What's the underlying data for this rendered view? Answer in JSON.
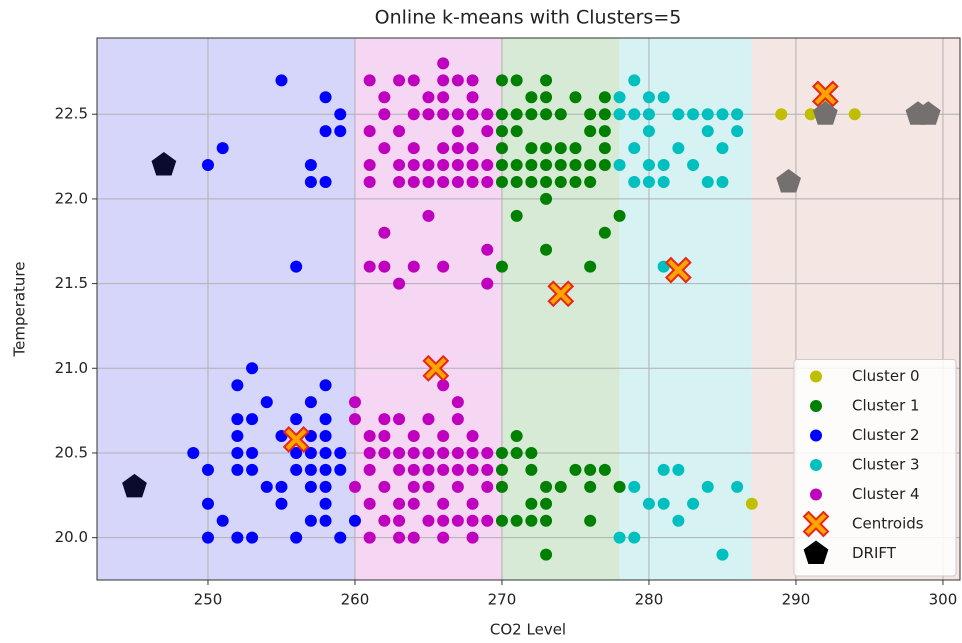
{
  "chart_data": {
    "type": "scatter",
    "title": "Online k-means with Clusters=5",
    "xlabel": "CO2 Level",
    "ylabel": "Temperature",
    "xlim": [
      242.45,
      301.16
    ],
    "ylim": [
      19.75,
      22.95
    ],
    "xticks": [
      250,
      260,
      270,
      280,
      290,
      300
    ],
    "yticks": [
      {
        "value": 20,
        "label": "20.0"
      },
      20.5,
      {
        "value": 21,
        "label": "21.0"
      },
      21.5,
      {
        "value": 22,
        "label": "22.0"
      },
      22.5
    ],
    "grid": true,
    "legend": "lower right",
    "regions": [
      {
        "from": 242.45,
        "to": 260,
        "color": "#d6d6fb"
      },
      {
        "from": 260,
        "to": 270,
        "color": "#f5d6f3"
      },
      {
        "from": 270,
        "to": 278,
        "color": "#d6ead6"
      },
      {
        "from": 278,
        "to": 287,
        "color": "#d6f2f3"
      },
      {
        "from": 287,
        "to": 301.16,
        "color": "#f3e6e3"
      }
    ],
    "series": [
      {
        "name": "Cluster 0",
        "color": "#bfbf00",
        "marker": "circle",
        "x": [
          289,
          291,
          292,
          294,
          287
        ],
        "y": [
          22.5,
          22.5,
          22.6,
          22.5,
          20.2
        ]
      },
      {
        "name": "Cluster 1",
        "color": "#008000",
        "marker": "circle",
        "x": [
          270,
          271,
          273,
          272,
          273,
          275,
          277,
          270,
          271,
          272,
          273,
          274,
          276,
          277,
          270,
          271,
          276,
          277,
          270,
          272,
          273,
          274,
          275,
          277,
          270,
          271,
          272,
          273,
          274,
          275,
          276,
          277,
          270,
          271,
          272,
          273,
          274,
          275,
          276,
          273,
          271,
          278,
          277,
          273,
          270,
          276,
          271,
          270,
          271,
          272,
          275,
          276,
          277,
          270,
          272,
          270,
          273,
          274,
          276,
          278,
          272,
          273,
          270,
          271,
          272,
          273,
          276,
          273
        ],
        "y": [
          22.7,
          22.7,
          22.7,
          22.6,
          22.6,
          22.6,
          22.6,
          22.5,
          22.5,
          22.5,
          22.5,
          22.5,
          22.5,
          22.5,
          22.4,
          22.4,
          22.4,
          22.4,
          22.3,
          22.3,
          22.3,
          22.3,
          22.3,
          22.3,
          22.2,
          22.2,
          22.2,
          22.2,
          22.2,
          22.2,
          22.2,
          22.2,
          22.1,
          22.1,
          22.1,
          22.1,
          22.1,
          22.1,
          22.1,
          22.0,
          21.9,
          21.9,
          21.8,
          21.7,
          21.6,
          21.6,
          20.6,
          20.5,
          20.5,
          20.5,
          20.4,
          20.4,
          20.4,
          20.4,
          20.4,
          20.3,
          20.3,
          20.3,
          20.3,
          20.3,
          20.2,
          20.2,
          20.1,
          20.1,
          20.1,
          20.1,
          20.1,
          19.9
        ]
      },
      {
        "name": "Cluster 2",
        "color": "#0000ff",
        "marker": "circle",
        "x": [
          255,
          258,
          258,
          259,
          259,
          251,
          250,
          257,
          257,
          258,
          256,
          253,
          252,
          254,
          258,
          257,
          252,
          253,
          256,
          258,
          252,
          255,
          257,
          258,
          249,
          252,
          253,
          256,
          257,
          258,
          259,
          250,
          252,
          253,
          256,
          257,
          258,
          259,
          254,
          255,
          257,
          258,
          250,
          255,
          258,
          251,
          257,
          258,
          260,
          250,
          252,
          253,
          256,
          259
        ],
        "y": [
          22.7,
          22.6,
          22.4,
          22.5,
          22.4,
          22.3,
          22.2,
          22.2,
          22.1,
          22.1,
          21.6,
          21.0,
          20.9,
          20.8,
          20.9,
          20.8,
          20.7,
          20.7,
          20.7,
          20.7,
          20.6,
          20.6,
          20.6,
          20.6,
          20.5,
          20.5,
          20.5,
          20.5,
          20.5,
          20.5,
          20.5,
          20.4,
          20.4,
          20.4,
          20.4,
          20.4,
          20.4,
          20.4,
          20.3,
          20.3,
          20.3,
          20.3,
          20.2,
          20.2,
          20.2,
          20.1,
          20.1,
          20.1,
          20.1,
          20.0,
          20.0,
          20.0,
          20.0,
          20.0
        ]
      },
      {
        "name": "Cluster 3",
        "color": "#00bfbf",
        "marker": "circle",
        "x": [
          279,
          278,
          280,
          281,
          278,
          279,
          280,
          282,
          283,
          284,
          285,
          286,
          280,
          284,
          286,
          279,
          282,
          285,
          278,
          280,
          281,
          283,
          279,
          280,
          281,
          284,
          285,
          281,
          281,
          282,
          279,
          284,
          286,
          280,
          281,
          283,
          282,
          278,
          279,
          285
        ],
        "y": [
          22.7,
          22.6,
          22.6,
          22.6,
          22.5,
          22.5,
          22.5,
          22.5,
          22.5,
          22.5,
          22.5,
          22.5,
          22.4,
          22.4,
          22.4,
          22.3,
          22.3,
          22.3,
          22.2,
          22.2,
          22.2,
          22.2,
          22.1,
          22.1,
          22.1,
          22.1,
          22.1,
          21.6,
          20.4,
          20.4,
          20.3,
          20.3,
          20.3,
          20.2,
          20.2,
          20.2,
          20.1,
          20.0,
          20.0,
          19.9
        ]
      },
      {
        "name": "Cluster 4",
        "color": "#bf00bf",
        "marker": "circle",
        "x": [
          266,
          261,
          263,
          264,
          266,
          267,
          268,
          262,
          265,
          266,
          268,
          262,
          264,
          265,
          266,
          267,
          268,
          269,
          261,
          263,
          267,
          269,
          262,
          264,
          266,
          267,
          268,
          261,
          263,
          264,
          265,
          266,
          267,
          268,
          269,
          261,
          263,
          264,
          265,
          266,
          267,
          268,
          269,
          265,
          262,
          269,
          261,
          262,
          264,
          266,
          263,
          269,
          266,
          267,
          260,
          267,
          260,
          262,
          263,
          265,
          261,
          262,
          264,
          266,
          268,
          261,
          262,
          263,
          264,
          265,
          266,
          267,
          268,
          269,
          261,
          263,
          264,
          265,
          266,
          267,
          268,
          269,
          260,
          262,
          264,
          265,
          267,
          269,
          261,
          263,
          264,
          266,
          268,
          262,
          263,
          265,
          266,
          267,
          268,
          269,
          261,
          263,
          264,
          266,
          268
        ],
        "y": [
          22.8,
          22.7,
          22.7,
          22.7,
          22.7,
          22.7,
          22.7,
          22.6,
          22.6,
          22.6,
          22.6,
          22.5,
          22.5,
          22.5,
          22.5,
          22.5,
          22.5,
          22.5,
          22.4,
          22.4,
          22.4,
          22.4,
          22.3,
          22.3,
          22.3,
          22.3,
          22.3,
          22.2,
          22.2,
          22.2,
          22.2,
          22.2,
          22.2,
          22.2,
          22.2,
          22.1,
          22.1,
          22.1,
          22.1,
          22.1,
          22.1,
          22.1,
          22.1,
          21.9,
          21.8,
          21.7,
          21.6,
          21.6,
          21.6,
          21.6,
          21.5,
          21.5,
          20.9,
          20.8,
          20.8,
          20.7,
          20.7,
          20.7,
          20.7,
          20.7,
          20.6,
          20.6,
          20.6,
          20.6,
          20.6,
          20.5,
          20.5,
          20.5,
          20.5,
          20.5,
          20.5,
          20.5,
          20.5,
          20.5,
          20.4,
          20.4,
          20.4,
          20.4,
          20.4,
          20.4,
          20.4,
          20.4,
          20.3,
          20.3,
          20.3,
          20.3,
          20.3,
          20.3,
          20.2,
          20.2,
          20.2,
          20.2,
          20.2,
          20.1,
          20.1,
          20.1,
          20.1,
          20.1,
          20.1,
          20.1,
          20.0,
          20.0,
          20.0,
          20.0,
          20.0
        ]
      },
      {
        "name": "Centroids",
        "color": "#ffa500",
        "edgecolor": "#e8251b",
        "marker": "x",
        "x": [
          292,
          282,
          274,
          265.5,
          256
        ],
        "y": [
          22.62,
          21.58,
          21.44,
          21.0,
          20.58
        ]
      },
      {
        "name": "DRIFT",
        "color": "#000000",
        "marker": "pentagon",
        "point_colors": [
          "#0b0b2e",
          "#0b0b2e",
          "#757070",
          "#757070",
          "#757070",
          "#757070"
        ],
        "x": [
          247,
          245,
          289.5,
          292,
          298.3,
          299
        ],
        "y": [
          22.2,
          20.3,
          22.1,
          22.5,
          22.5,
          22.5
        ]
      }
    ]
  }
}
